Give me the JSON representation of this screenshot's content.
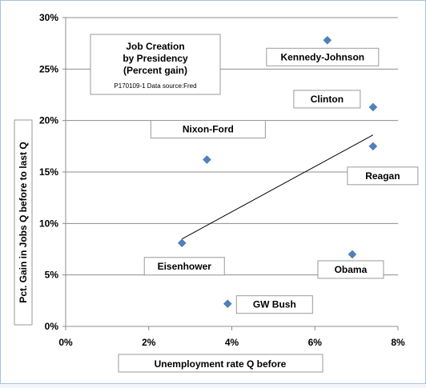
{
  "chart_data": {
    "type": "scatter",
    "title_lines": [
      "Job Creation",
      "by Presidency",
      "(Percent gain)"
    ],
    "source_note": "P170109-1 Data source:Fred",
    "xlabel": "Unemployment rate Q before",
    "ylabel": "Pct. Gain in Jobs Q before to last Q",
    "xlim": [
      0,
      8
    ],
    "ylim": [
      0,
      30
    ],
    "x_ticks": [
      0,
      2,
      4,
      6,
      8
    ],
    "x_tick_labels": [
      "0%",
      "2%",
      "4%",
      "6%",
      "8%"
    ],
    "y_ticks": [
      0,
      5,
      10,
      15,
      20,
      25,
      30
    ],
    "y_tick_labels": [
      "0%",
      "5%",
      "10%",
      "15%",
      "20%",
      "25%",
      "30%"
    ],
    "horizontal_grid": true,
    "marker_color": "#4f81bd",
    "points": [
      {
        "label": "Eisenhower",
        "x": 2.8,
        "y": 8.1
      },
      {
        "label": "Kennedy-Johnson",
        "x": 6.3,
        "y": 27.8
      },
      {
        "label": "Nixon-Ford",
        "x": 3.4,
        "y": 16.2
      },
      {
        "label": "Reagan",
        "x": 7.4,
        "y": 17.5
      },
      {
        "label": "GW Bush",
        "x": 3.9,
        "y": 2.2
      },
      {
        "label": "Obama",
        "x": 6.9,
        "y": 7.0
      },
      {
        "label": "Clinton",
        "x": 7.4,
        "y": 21.3
      }
    ],
    "trendline": {
      "x": [
        2.8,
        7.4
      ],
      "y": [
        8.5,
        18.6
      ]
    }
  }
}
